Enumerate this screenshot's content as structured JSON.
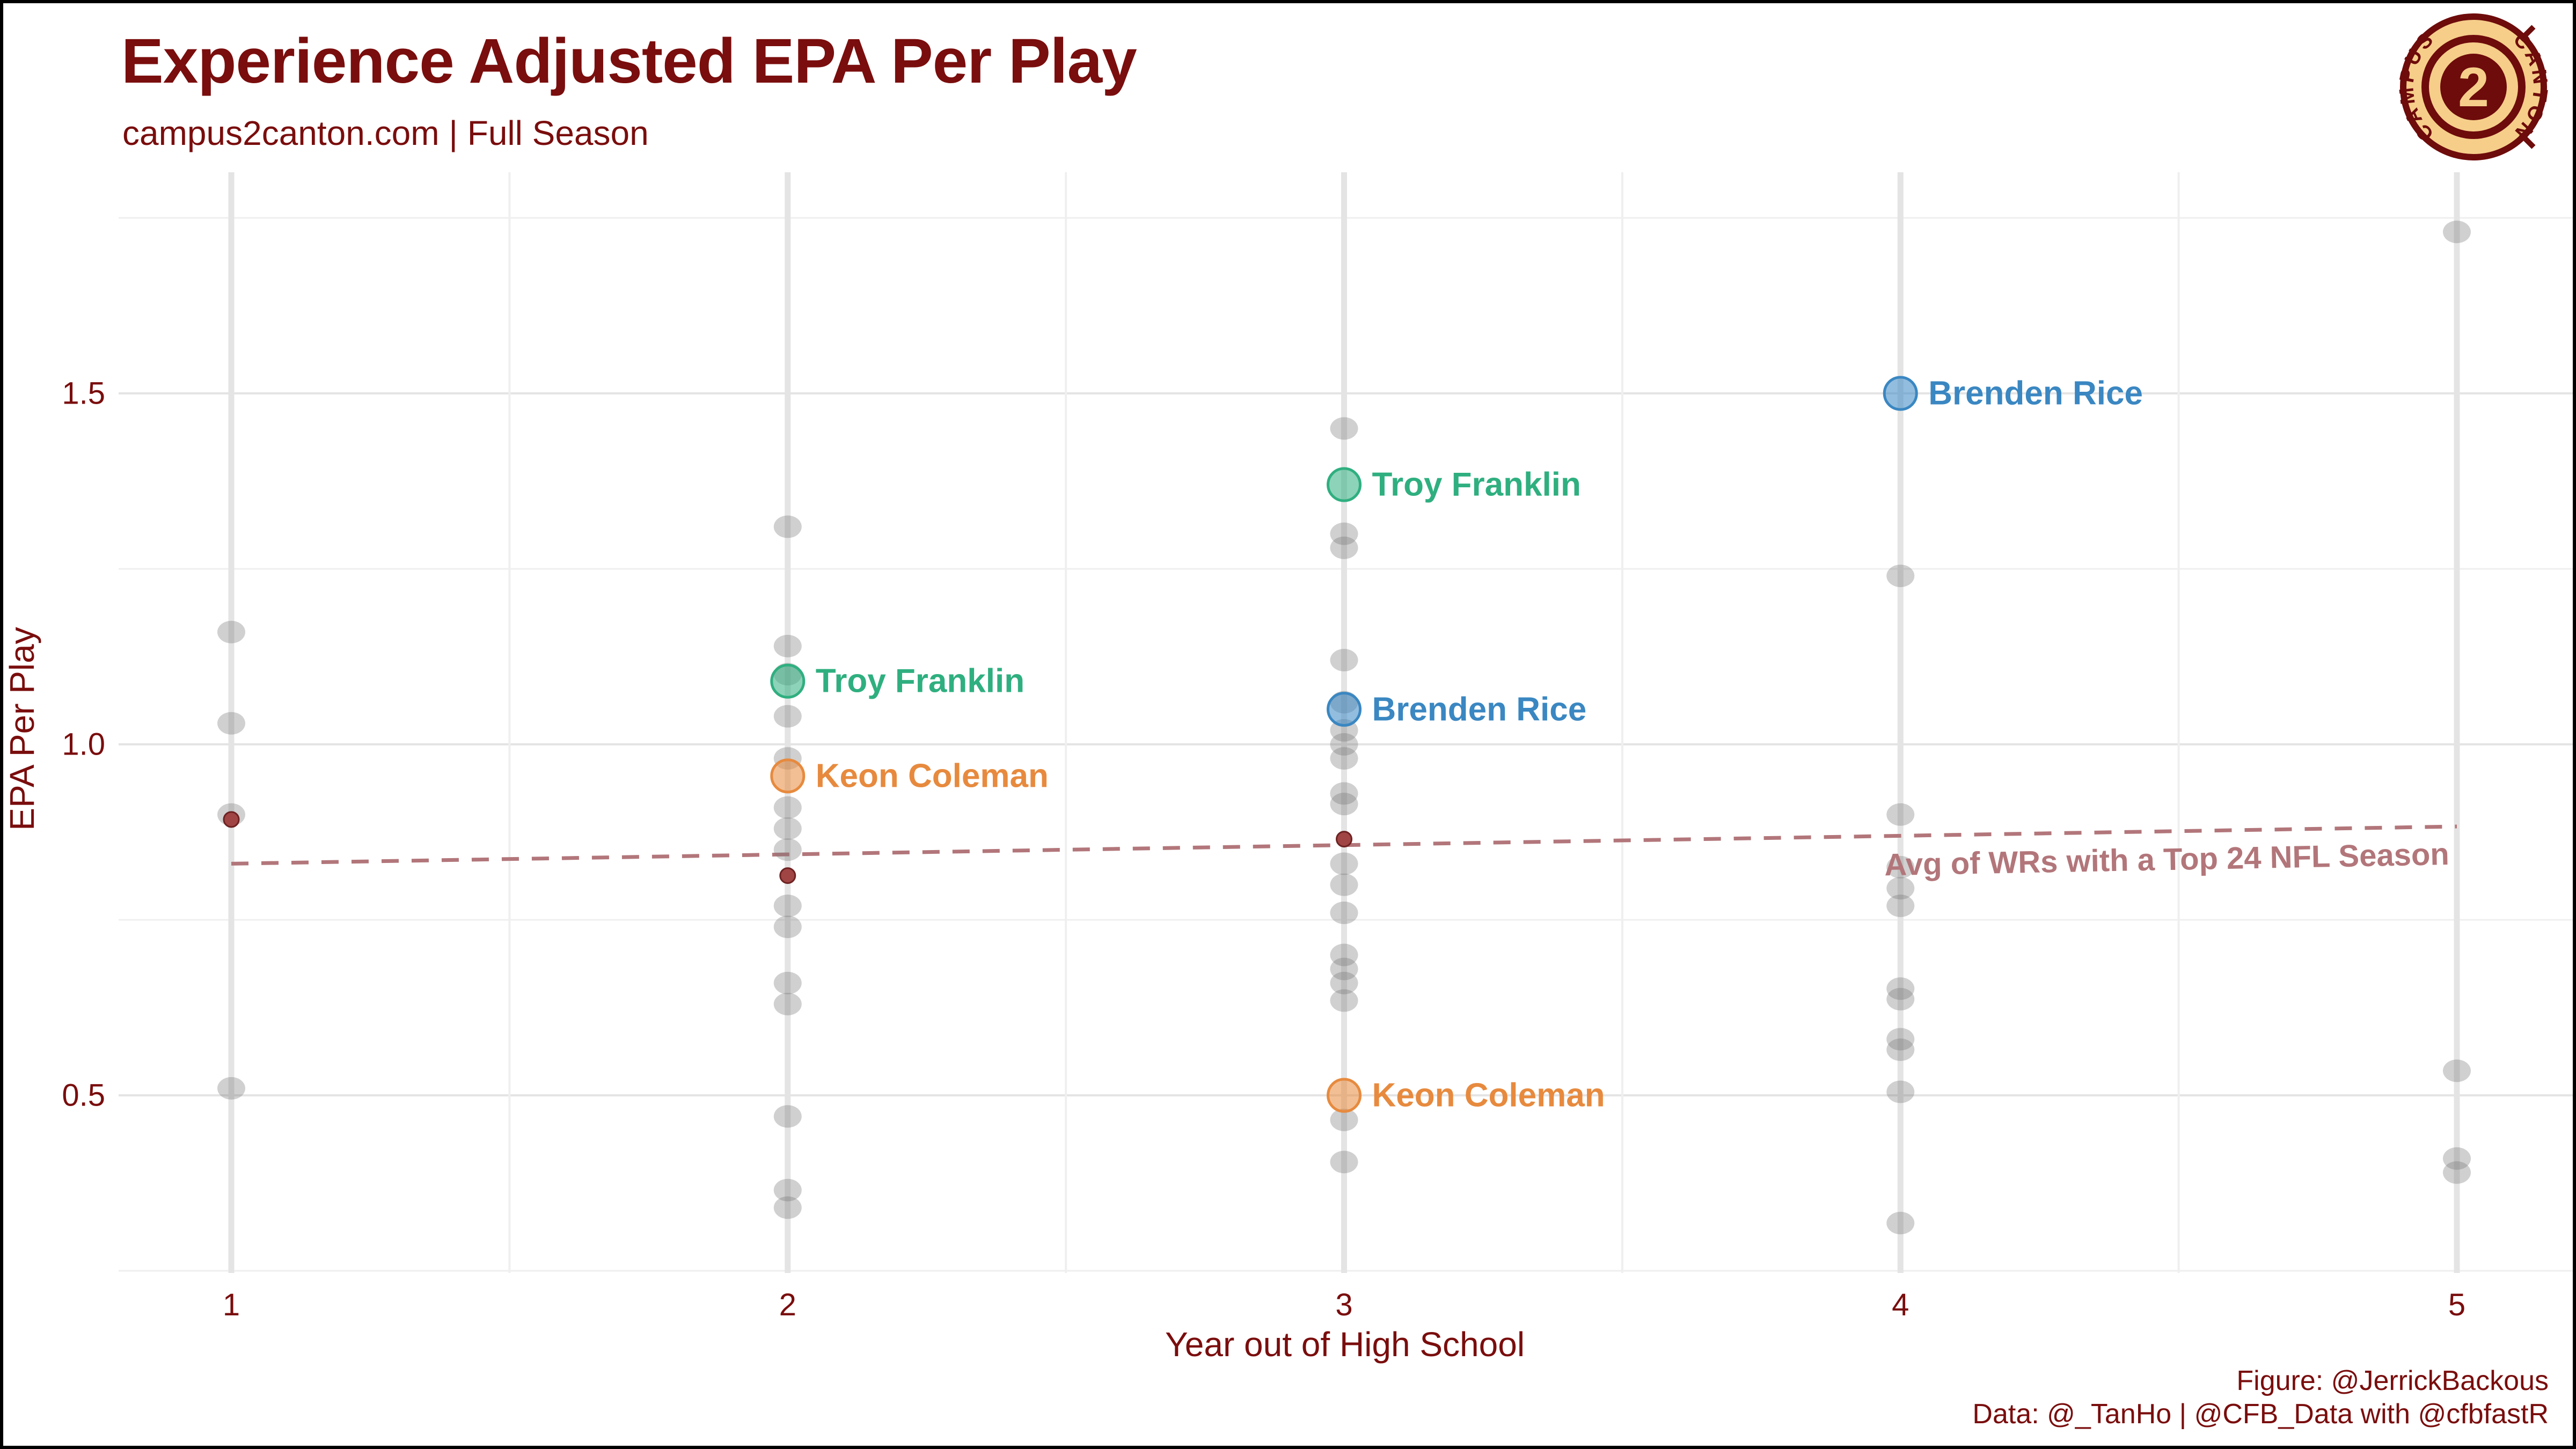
{
  "header": {
    "title": "Experience Adjusted EPA Per Play",
    "subtitle": "campus2canton.com | Full Season"
  },
  "logo": {
    "center_glyph": "2",
    "arc_text_left": "CAMPUS",
    "arc_text_right": "CANTON",
    "gold": "#F6CE8A",
    "maroon": "#6E0B0B"
  },
  "footer": {
    "figure_credit": "Figure: @JerrickBackous",
    "data_credit": "Data: @_TanHo | @CFB_Data with @cfbfastR"
  },
  "colors": {
    "text_maroon": "#7A0D0D",
    "gray_point": "rgba(120,120,120,0.35)",
    "avg_point_fill": "#A04444",
    "avg_point_stroke": "#6E2222",
    "trend_rose": "#B2767A",
    "teal": "#2FAF80",
    "blue": "#3A87C2",
    "orange": "#E78A3E",
    "grid_major": "#E4E4E4",
    "grid_minor": "#EFEFEF"
  },
  "chart_data": {
    "type": "scatter",
    "title": "Experience Adjusted EPA Per Play",
    "xlabel": "Year out of High School",
    "ylabel": "EPA Per Play",
    "xlim": [
      0.8,
      5.21
    ],
    "ylim": [
      0.23,
      1.81
    ],
    "grid": "major+minor, white panel",
    "legend_position": "none",
    "x_ticks": [
      {
        "value": 1,
        "label": "1"
      },
      {
        "value": 2,
        "label": "2"
      },
      {
        "value": 3,
        "label": "3"
      },
      {
        "value": 4,
        "label": "4"
      },
      {
        "value": 5,
        "label": "5"
      }
    ],
    "y_ticks": [
      {
        "value": 1.5,
        "label": "1.5"
      },
      {
        "value": 1.0,
        "label": "1.0"
      },
      {
        "value": 0.5,
        "label": "0.5"
      }
    ],
    "background_series": {
      "name": "All WR seasons (gray)",
      "points": [
        {
          "x": 1,
          "y": 1.16
        },
        {
          "x": 1,
          "y": 1.03
        },
        {
          "x": 1,
          "y": 0.9
        },
        {
          "x": 1,
          "y": 0.51
        },
        {
          "x": 2,
          "y": 1.31
        },
        {
          "x": 2,
          "y": 1.14
        },
        {
          "x": 2,
          "y": 1.1
        },
        {
          "x": 2,
          "y": 1.04
        },
        {
          "x": 2,
          "y": 0.98
        },
        {
          "x": 2,
          "y": 0.91
        },
        {
          "x": 2,
          "y": 0.88
        },
        {
          "x": 2,
          "y": 0.85
        },
        {
          "x": 2,
          "y": 0.77
        },
        {
          "x": 2,
          "y": 0.74
        },
        {
          "x": 2,
          "y": 0.66
        },
        {
          "x": 2,
          "y": 0.63
        },
        {
          "x": 2,
          "y": 0.47
        },
        {
          "x": 2,
          "y": 0.365
        },
        {
          "x": 2,
          "y": 0.34
        },
        {
          "x": 3,
          "y": 1.45
        },
        {
          "x": 3,
          "y": 1.3
        },
        {
          "x": 3,
          "y": 1.28
        },
        {
          "x": 3,
          "y": 1.12
        },
        {
          "x": 3,
          "y": 1.06
        },
        {
          "x": 3,
          "y": 1.02
        },
        {
          "x": 3,
          "y": 1.0
        },
        {
          "x": 3,
          "y": 0.98
        },
        {
          "x": 3,
          "y": 0.93
        },
        {
          "x": 3,
          "y": 0.915
        },
        {
          "x": 3,
          "y": 0.83
        },
        {
          "x": 3,
          "y": 0.8
        },
        {
          "x": 3,
          "y": 0.76
        },
        {
          "x": 3,
          "y": 0.7
        },
        {
          "x": 3,
          "y": 0.68
        },
        {
          "x": 3,
          "y": 0.66
        },
        {
          "x": 3,
          "y": 0.635
        },
        {
          "x": 3,
          "y": 0.465
        },
        {
          "x": 3,
          "y": 0.405
        },
        {
          "x": 4,
          "y": 1.24
        },
        {
          "x": 4,
          "y": 0.9
        },
        {
          "x": 4,
          "y": 0.825
        },
        {
          "x": 4,
          "y": 0.795
        },
        {
          "x": 4,
          "y": 0.77
        },
        {
          "x": 4,
          "y": 0.652
        },
        {
          "x": 4,
          "y": 0.637
        },
        {
          "x": 4,
          "y": 0.58
        },
        {
          "x": 4,
          "y": 0.565
        },
        {
          "x": 4,
          "y": 0.505
        },
        {
          "x": 4,
          "y": 0.318
        },
        {
          "x": 5,
          "y": 1.73
        },
        {
          "x": 5,
          "y": 0.535
        },
        {
          "x": 5,
          "y": 0.41
        },
        {
          "x": 5,
          "y": 0.39
        }
      ]
    },
    "avg_series": {
      "name": "Yearly avg of Top 24 WRs (dark red)",
      "points": [
        {
          "x": 1,
          "y": 0.893
        },
        {
          "x": 2,
          "y": 0.813
        },
        {
          "x": 3,
          "y": 0.865
        }
      ]
    },
    "labeled_players": [
      {
        "name": "Troy Franklin",
        "x": 2,
        "y": 1.09,
        "color_key": "teal"
      },
      {
        "name": "Keon Coleman",
        "x": 2,
        "y": 0.955,
        "color_key": "orange"
      },
      {
        "name": "Troy Franklin",
        "x": 3,
        "y": 1.37,
        "color_key": "teal"
      },
      {
        "name": "Brenden Rice",
        "x": 3,
        "y": 1.05,
        "color_key": "blue"
      },
      {
        "name": "Keon Coleman",
        "x": 3,
        "y": 0.5,
        "color_key": "orange"
      },
      {
        "name": "Brenden Rice",
        "x": 4,
        "y": 1.5,
        "color_key": "blue"
      }
    ],
    "trend_line": {
      "label": "Avg of WRs with a Top 24 NFL Season",
      "style": "dashed",
      "x1": 1,
      "y1": 0.83,
      "x2": 5,
      "y2": 0.883
    }
  }
}
